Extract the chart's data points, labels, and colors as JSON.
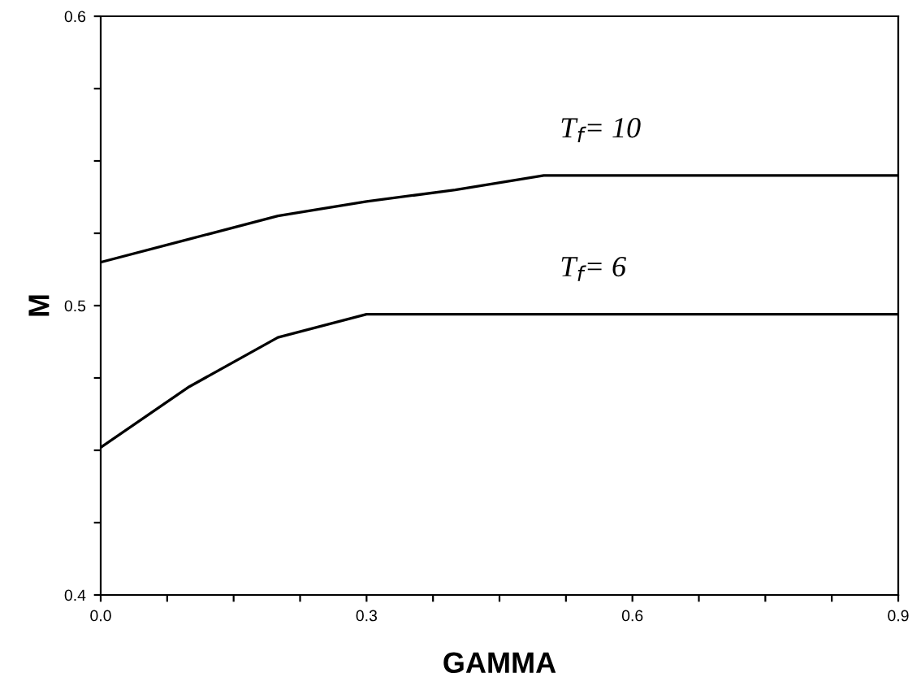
{
  "chart_data": {
    "type": "line",
    "xlabel": "GAMMA",
    "ylabel": "M",
    "x": [
      0.0,
      0.1,
      0.2,
      0.3,
      0.4,
      0.5,
      0.6,
      0.7,
      0.8,
      0.9
    ],
    "series": [
      {
        "name": "T$_{f}$= 10",
        "color": "#000000",
        "values": [
          0.515,
          0.523,
          0.531,
          0.536,
          0.54,
          0.545,
          0.545,
          0.545,
          0.545,
          0.545
        ]
      },
      {
        "name": "T$_{f}$= 6",
        "color": "#000000",
        "values": [
          0.451,
          0.472,
          0.489,
          0.497,
          0.497,
          0.497,
          0.497,
          0.497,
          0.497,
          0.497
        ]
      }
    ],
    "xlim": [
      0.0,
      0.9
    ],
    "ylim": [
      0.4,
      0.6
    ],
    "xticks": [
      {
        "value": 0.0,
        "label": "0.0"
      },
      {
        "value": 0.075,
        "label": null
      },
      {
        "value": 0.15,
        "label": null
      },
      {
        "value": 0.225,
        "label": null
      },
      0.3,
      {
        "value": 0.375,
        "label": null
      },
      {
        "value": 0.45,
        "label": null
      },
      {
        "value": 0.525,
        "label": null
      },
      0.6,
      {
        "value": 0.675,
        "label": null
      },
      {
        "value": 0.75,
        "label": null
      },
      {
        "value": 0.825,
        "label": null
      },
      0.9
    ],
    "yticks": [
      0.4,
      {
        "value": 0.425,
        "label": null
      },
      {
        "value": 0.45,
        "label": null
      },
      {
        "value": 0.475,
        "label": null
      },
      0.5,
      {
        "value": 0.525,
        "label": null
      },
      {
        "value": 0.55,
        "label": null
      },
      {
        "value": 0.575,
        "label": null
      },
      0.6
    ],
    "grid": false,
    "legend": false,
    "marker": "none",
    "line_style": "solid"
  }
}
